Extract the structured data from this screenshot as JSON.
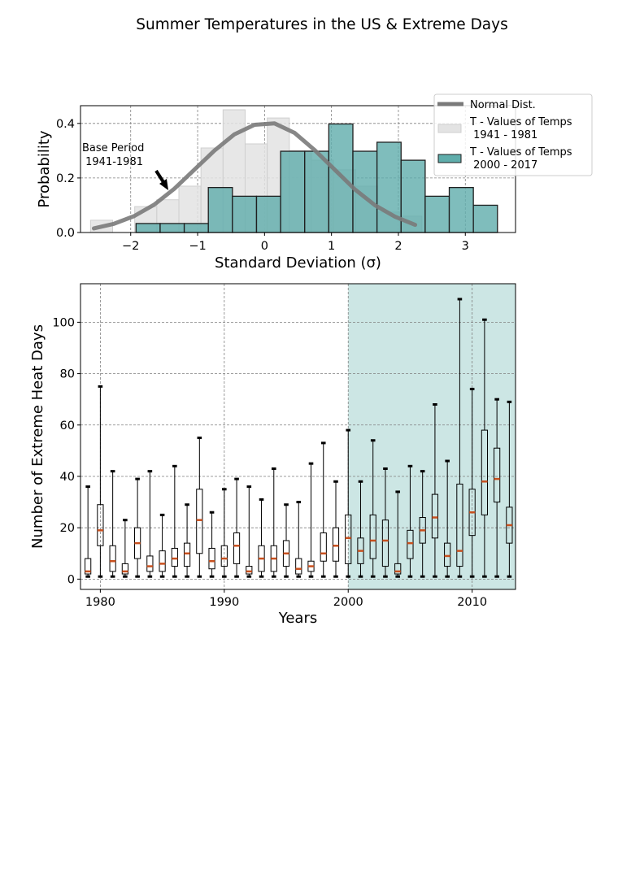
{
  "figure": {
    "suptitle": "Summer Temperatures in the US & Extreme Days"
  },
  "colors": {
    "normal_line": "#7a7a7a",
    "base_fill": "#e3e3e3",
    "base_edge": "#cfcfcf",
    "recent_fill": "#5fadab",
    "recent_edge": "#1f1f1f",
    "highlight_span": "#cce6e4",
    "median": "#c8501e",
    "grid": "#808080"
  },
  "chart_data": [
    {
      "type": "bar",
      "xlabel": "Standard Deviation (σ)",
      "ylabel": "Probability",
      "xlim": [
        -2.75,
        3.75
      ],
      "ylim": [
        0,
        0.465
      ],
      "xticks": [
        -2,
        -1,
        0,
        1,
        2,
        3
      ],
      "xtick_labels": [
        "−2",
        "−1",
        "0",
        "1",
        "2",
        "3"
      ],
      "yticks": [
        0.0,
        0.2,
        0.4
      ],
      "ytick_labels": [
        "0.0",
        "0.2",
        "0.4"
      ],
      "grid": true,
      "legend_position": "top-right",
      "annotation": {
        "text_line1": "Base Period",
        "text_line2": " 1941-1981",
        "points_to": {
          "x": -1.5,
          "y": 0.16
        }
      },
      "normal_dist": {
        "name": "Normal Dist.",
        "x": [
          -2.55,
          -2.25,
          -1.95,
          -1.65,
          -1.35,
          -1.05,
          -0.75,
          -0.45,
          -0.15,
          0.15,
          0.45,
          0.75,
          1.05,
          1.35,
          1.65,
          1.95,
          2.25
        ],
        "y": [
          0.015,
          0.032,
          0.06,
          0.102,
          0.16,
          0.23,
          0.3,
          0.36,
          0.395,
          0.4,
          0.365,
          0.302,
          0.23,
          0.158,
          0.1,
          0.058,
          0.028
        ]
      },
      "base_period": {
        "name": "T - Values of Temps",
        "name_line2": " 1941 - 1981",
        "bin_edges": [
          -2.6,
          -2.27,
          -1.94,
          -1.61,
          -1.28,
          -0.95,
          -0.62,
          -0.29,
          0.04,
          0.37,
          0.7,
          1.03,
          1.36,
          1.69,
          2.02,
          2.35
        ],
        "values": [
          0.045,
          0.0,
          0.095,
          0.12,
          0.17,
          0.31,
          0.45,
          0.325,
          0.42,
          0.3,
          0.265,
          0.23,
          0.17,
          0.075,
          0.06
        ]
      },
      "recent_period": {
        "name": "T - Values of Temps",
        "name_line2": " 2000 - 2017",
        "bin_edges": [
          -1.92,
          -1.56,
          -1.2,
          -0.84,
          -0.48,
          -0.12,
          0.24,
          0.6,
          0.96,
          1.32,
          1.68,
          2.04,
          2.4,
          2.76,
          3.12,
          3.48
        ],
        "values": [
          0.033,
          0.033,
          0.033,
          0.165,
          0.133,
          0.133,
          0.298,
          0.298,
          0.398,
          0.298,
          0.331,
          0.265,
          0.133,
          0.165,
          0.1
        ]
      }
    },
    {
      "type": "box",
      "xlabel": "Years",
      "ylabel": "Number of Extreme Heat Days",
      "xlim": [
        1978.4,
        2013.5
      ],
      "ylim": [
        -4,
        115
      ],
      "xticks": [
        1980,
        1990,
        2000,
        2010
      ],
      "xtick_labels": [
        "1980",
        "1990",
        "2000",
        "2010"
      ],
      "yticks": [
        0,
        20,
        40,
        60,
        80,
        100
      ],
      "ytick_labels": [
        "0",
        "20",
        "40",
        "60",
        "80",
        "100"
      ],
      "grid": true,
      "highlight_span": [
        2000,
        2013.5
      ],
      "years": [
        1979,
        1980,
        1981,
        1982,
        1983,
        1984,
        1985,
        1986,
        1987,
        1988,
        1989,
        1990,
        1991,
        1992,
        1993,
        1994,
        1995,
        1996,
        1997,
        1998,
        1999,
        2000,
        2001,
        2002,
        2003,
        2004,
        2005,
        2006,
        2007,
        2008,
        2009,
        2010,
        2011,
        2012,
        2013
      ],
      "whisker_low": [
        1,
        1,
        1,
        1,
        1,
        1,
        1,
        1,
        1,
        1,
        1,
        1,
        1,
        1,
        1,
        1,
        1,
        1,
        1,
        1,
        1,
        1,
        1,
        1,
        1,
        1,
        1,
        1,
        1,
        1,
        1,
        1,
        1,
        1,
        1
      ],
      "q1": [
        2,
        13,
        3,
        2,
        8,
        3,
        3,
        5,
        5,
        10,
        4,
        5,
        6,
        2,
        3,
        3,
        5,
        2,
        3,
        7,
        7,
        6,
        6,
        8,
        5,
        2,
        8,
        14,
        16,
        5,
        5,
        17,
        25,
        30,
        14
      ],
      "median": [
        3,
        19,
        7,
        3,
        14,
        5,
        6,
        8,
        10,
        23,
        7,
        8,
        13,
        3,
        8,
        8,
        10,
        4,
        5,
        10,
        13,
        16,
        11,
        15,
        15,
        3,
        14,
        19,
        24,
        9,
        11,
        26,
        38,
        39,
        21
      ],
      "q3": [
        8,
        29,
        13,
        6,
        20,
        9,
        11,
        12,
        14,
        35,
        12,
        13,
        18,
        5,
        13,
        13,
        15,
        8,
        7,
        18,
        20,
        25,
        16,
        25,
        23,
        6,
        19,
        24,
        33,
        14,
        37,
        35,
        58,
        51,
        28
      ],
      "whisker_high": [
        36,
        75,
        42,
        23,
        39,
        42,
        25,
        44,
        29,
        55,
        26,
        35,
        39,
        36,
        31,
        43,
        29,
        30,
        45,
        53,
        38,
        58,
        38,
        54,
        43,
        34,
        44,
        42,
        68,
        46,
        109,
        74,
        101,
        70,
        69
      ]
    }
  ]
}
